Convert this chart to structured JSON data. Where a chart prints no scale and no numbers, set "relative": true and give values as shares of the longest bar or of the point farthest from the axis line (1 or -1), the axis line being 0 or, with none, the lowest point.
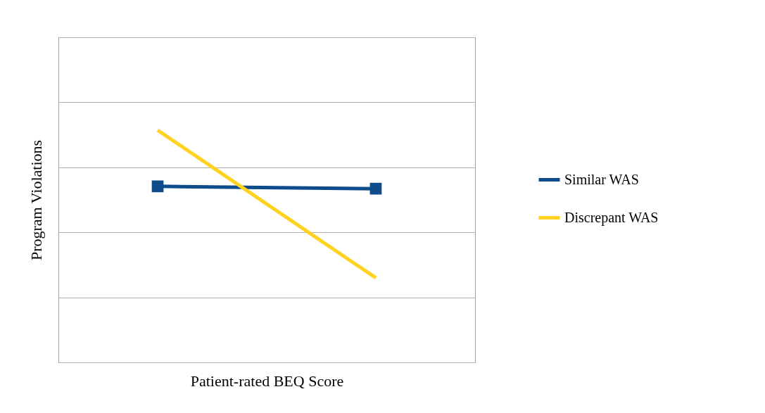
{
  "chart_data": {
    "type": "line",
    "xlabel": "Patient-rated BEQ Score",
    "ylabel": "Program Violations",
    "categories": [
      null,
      null
    ],
    "relative": true,
    "grid": "y",
    "legend": "right",
    "line_style": "solid",
    "series": [
      {
        "name": "Similar WAS",
        "color": "#0f4c8c",
        "marker": "square",
        "values": [
          0.758,
          0.748
        ]
      },
      {
        "name": "Discrepant WAS",
        "color": "#ffd21f",
        "marker": "none",
        "values": [
          1,
          0.364
        ]
      }
    ]
  }
}
